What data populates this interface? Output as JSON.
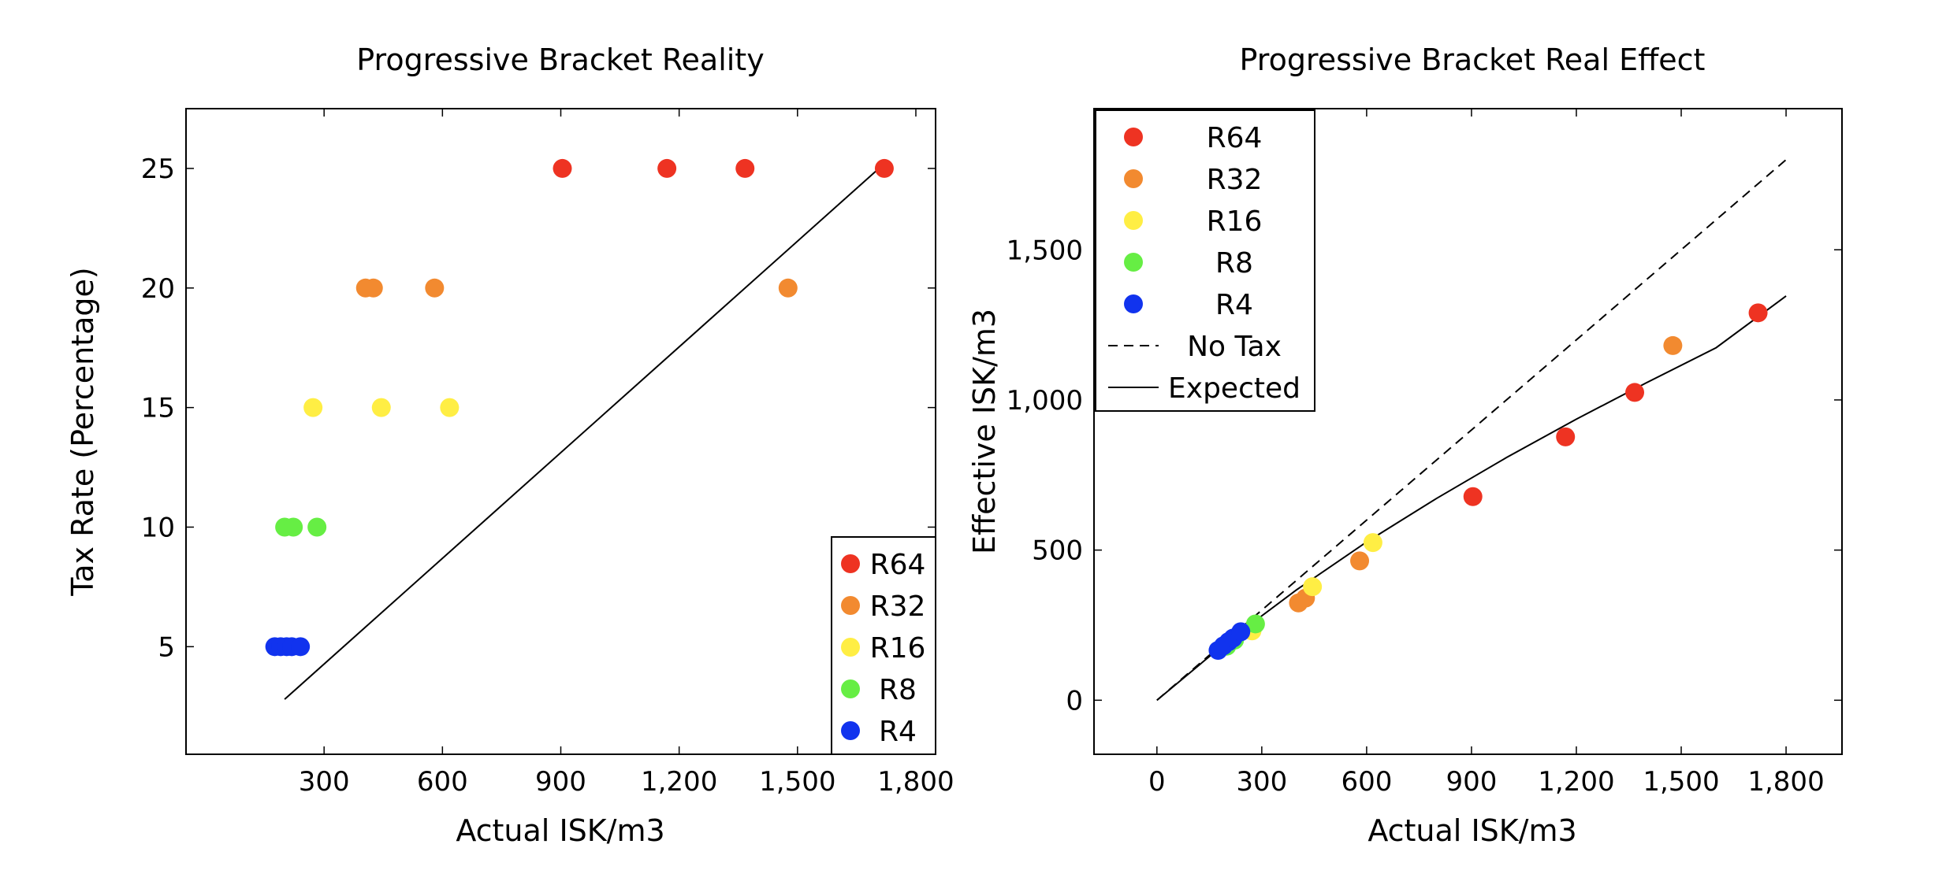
{
  "chart_data": [
    {
      "type": "scatter",
      "title": "Progressive Bracket Reality",
      "xlabel": "Actual ISK/m3",
      "ylabel": "Tax Rate (Percentage)",
      "xlim": [
        -50,
        1850
      ],
      "ylim": [
        0.5,
        27.5
      ],
      "xticks": [
        300,
        600,
        900,
        1200,
        1500,
        1800
      ],
      "xtick_labels": [
        "300",
        "600",
        "900",
        "1,200",
        "1,500",
        "1,800"
      ],
      "yticks": [
        5,
        10,
        15,
        20,
        25
      ],
      "ytick_labels": [
        "5",
        "10",
        "15",
        "20",
        "25"
      ],
      "legend_position": "bottom-right",
      "series": [
        {
          "name": "R64",
          "color": "#ee3322",
          "x": [
            904,
            1169,
            1367,
            1720
          ],
          "y": [
            25,
            25,
            25,
            25
          ]
        },
        {
          "name": "R32",
          "color": "#f28a30",
          "x": [
            405,
            425,
            580,
            1476
          ],
          "y": [
            20,
            20,
            20,
            20
          ]
        },
        {
          "name": "R16",
          "color": "#ffee44",
          "x": [
            272,
            445,
            618
          ],
          "y": [
            15,
            15,
            15
          ]
        },
        {
          "name": "R8",
          "color": "#66ee44",
          "x": [
            200,
            222,
            282
          ],
          "y": [
            10,
            10,
            10
          ]
        },
        {
          "name": "R4",
          "color": "#1133ee",
          "x": [
            175,
            190,
            205,
            218,
            240
          ],
          "y": [
            5,
            5,
            5,
            5,
            5
          ]
        }
      ],
      "line": {
        "x": [
          200,
          1720
        ],
        "y": [
          2.8,
          25.2
        ]
      }
    },
    {
      "type": "scatter",
      "title": "Progressive Bracket Real Effect",
      "xlabel": "Actual ISK/m3",
      "ylabel": "Effective ISK/m3",
      "xlim": [
        -180,
        1960
      ],
      "ylim": [
        -180,
        1970
      ],
      "xticks": [
        0,
        300,
        600,
        900,
        1200,
        1500,
        1800
      ],
      "xtick_labels": [
        "0",
        "300",
        "600",
        "900",
        "1,200",
        "1,500",
        "1,800"
      ],
      "yticks": [
        0,
        500,
        1000,
        1500
      ],
      "ytick_labels": [
        "0",
        "500",
        "1,000",
        "1,500"
      ],
      "legend_position": "top-left",
      "series": [
        {
          "name": "R64",
          "color": "#ee3322",
          "x": [
            904,
            1169,
            1367,
            1720
          ],
          "y": [
            678,
            877,
            1025,
            1290
          ]
        },
        {
          "name": "R32",
          "color": "#f28a30",
          "x": [
            405,
            425,
            580,
            1476
          ],
          "y": [
            324,
            340,
            464,
            1181
          ]
        },
        {
          "name": "R16",
          "color": "#ffee44",
          "x": [
            272,
            445,
            618
          ],
          "y": [
            231,
            378,
            525
          ]
        },
        {
          "name": "R8",
          "color": "#66ee44",
          "x": [
            200,
            222,
            282
          ],
          "y": [
            180,
            200,
            254
          ]
        },
        {
          "name": "R4",
          "color": "#1133ee",
          "x": [
            175,
            190,
            205,
            218,
            240
          ],
          "y": [
            166,
            181,
            195,
            207,
            228
          ]
        }
      ],
      "lines": [
        {
          "name": "No Tax",
          "style": "dashed",
          "x": [
            0,
            1800
          ],
          "y": [
            0,
            1800
          ]
        },
        {
          "name": "Expected",
          "style": "solid",
          "x": [
            0,
            200,
            400,
            600,
            800,
            1000,
            1200,
            1400,
            1600,
            1800
          ],
          "y": [
            0,
            194,
            368,
            527,
            672,
            808,
            936,
            1057,
            1174,
            1346
          ]
        }
      ]
    }
  ]
}
